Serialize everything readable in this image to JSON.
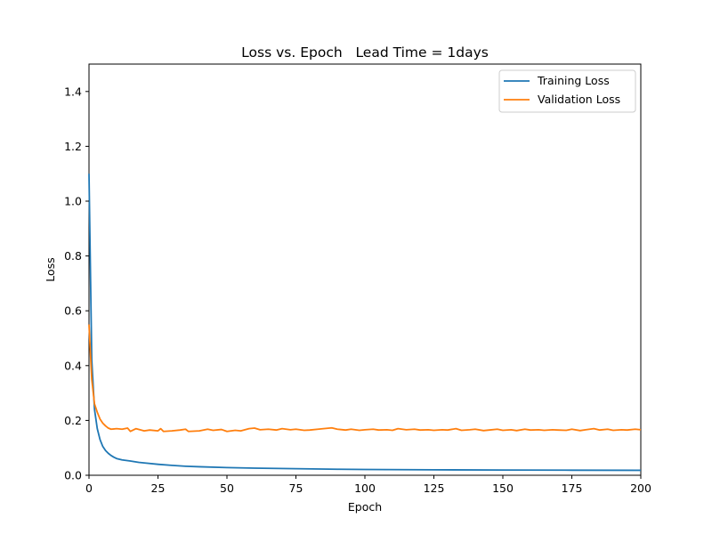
{
  "chart_data": {
    "type": "line",
    "title": "Loss vs. Epoch   Lead Time = 1days",
    "xlabel": "Epoch",
    "ylabel": "Loss",
    "xlim": [
      0,
      200
    ],
    "ylim": [
      0,
      1.5
    ],
    "x_ticks": [
      0,
      25,
      50,
      75,
      100,
      125,
      150,
      175,
      200
    ],
    "x_tick_labels": [
      "0",
      "25",
      "50",
      "75",
      "100",
      "125",
      "150",
      "175",
      "200"
    ],
    "y_ticks": [
      0.0,
      0.2,
      0.4,
      0.6,
      0.8,
      1.0,
      1.2,
      1.4
    ],
    "y_tick_labels": [
      "0.0",
      "0.2",
      "0.4",
      "0.6",
      "0.8",
      "1.0",
      "1.2",
      "1.4"
    ],
    "grid": false,
    "legend_position": "top-right",
    "series": [
      {
        "name": "Training Loss",
        "color": "#1f77b4",
        "points": [
          [
            0,
            1.1
          ],
          [
            1,
            0.42
          ],
          [
            2,
            0.24
          ],
          [
            3,
            0.17
          ],
          [
            4,
            0.13
          ],
          [
            5,
            0.105
          ],
          [
            6,
            0.09
          ],
          [
            7,
            0.08
          ],
          [
            8,
            0.072
          ],
          [
            9,
            0.066
          ],
          [
            10,
            0.061
          ],
          [
            12,
            0.056
          ],
          [
            15,
            0.052
          ],
          [
            18,
            0.047
          ],
          [
            20,
            0.045
          ],
          [
            25,
            0.04
          ],
          [
            30,
            0.036
          ],
          [
            35,
            0.033
          ],
          [
            40,
            0.031
          ],
          [
            50,
            0.028
          ],
          [
            60,
            0.026
          ],
          [
            75,
            0.024
          ],
          [
            90,
            0.022
          ],
          [
            100,
            0.021
          ],
          [
            125,
            0.02
          ],
          [
            150,
            0.019
          ],
          [
            175,
            0.0185
          ],
          [
            200,
            0.018
          ]
        ]
      },
      {
        "name": "Validation Loss",
        "color": "#ff7f0e",
        "points": [
          [
            0,
            0.55
          ],
          [
            1,
            0.35
          ],
          [
            2,
            0.26
          ],
          [
            3,
            0.23
          ],
          [
            4,
            0.205
          ],
          [
            5,
            0.19
          ],
          [
            6,
            0.18
          ],
          [
            7,
            0.172
          ],
          [
            8,
            0.168
          ],
          [
            10,
            0.17
          ],
          [
            12,
            0.168
          ],
          [
            14,
            0.172
          ],
          [
            15,
            0.16
          ],
          [
            17,
            0.17
          ],
          [
            20,
            0.162
          ],
          [
            22,
            0.165
          ],
          [
            25,
            0.162
          ],
          [
            26,
            0.17
          ],
          [
            27,
            0.16
          ],
          [
            30,
            0.162
          ],
          [
            33,
            0.165
          ],
          [
            35,
            0.168
          ],
          [
            36,
            0.16
          ],
          [
            40,
            0.162
          ],
          [
            43,
            0.168
          ],
          [
            45,
            0.164
          ],
          [
            48,
            0.167
          ],
          [
            50,
            0.16
          ],
          [
            53,
            0.164
          ],
          [
            55,
            0.162
          ],
          [
            58,
            0.17
          ],
          [
            60,
            0.172
          ],
          [
            62,
            0.166
          ],
          [
            65,
            0.168
          ],
          [
            68,
            0.165
          ],
          [
            70,
            0.17
          ],
          [
            73,
            0.166
          ],
          [
            75,
            0.168
          ],
          [
            78,
            0.164
          ],
          [
            80,
            0.165
          ],
          [
            83,
            0.168
          ],
          [
            85,
            0.17
          ],
          [
            88,
            0.173
          ],
          [
            90,
            0.168
          ],
          [
            93,
            0.165
          ],
          [
            95,
            0.168
          ],
          [
            98,
            0.164
          ],
          [
            100,
            0.166
          ],
          [
            103,
            0.168
          ],
          [
            105,
            0.165
          ],
          [
            108,
            0.166
          ],
          [
            110,
            0.164
          ],
          [
            112,
            0.17
          ],
          [
            115,
            0.166
          ],
          [
            118,
            0.168
          ],
          [
            120,
            0.165
          ],
          [
            123,
            0.166
          ],
          [
            125,
            0.164
          ],
          [
            128,
            0.166
          ],
          [
            130,
            0.165
          ],
          [
            133,
            0.17
          ],
          [
            135,
            0.164
          ],
          [
            138,
            0.166
          ],
          [
            140,
            0.168
          ],
          [
            143,
            0.163
          ],
          [
            145,
            0.165
          ],
          [
            148,
            0.168
          ],
          [
            150,
            0.164
          ],
          [
            153,
            0.166
          ],
          [
            155,
            0.163
          ],
          [
            158,
            0.168
          ],
          [
            160,
            0.165
          ],
          [
            163,
            0.166
          ],
          [
            165,
            0.164
          ],
          [
            168,
            0.166
          ],
          [
            170,
            0.165
          ],
          [
            173,
            0.164
          ],
          [
            175,
            0.168
          ],
          [
            178,
            0.163
          ],
          [
            180,
            0.166
          ],
          [
            183,
            0.17
          ],
          [
            185,
            0.165
          ],
          [
            188,
            0.168
          ],
          [
            190,
            0.164
          ],
          [
            193,
            0.166
          ],
          [
            195,
            0.165
          ],
          [
            198,
            0.168
          ],
          [
            200,
            0.166
          ]
        ]
      }
    ]
  }
}
